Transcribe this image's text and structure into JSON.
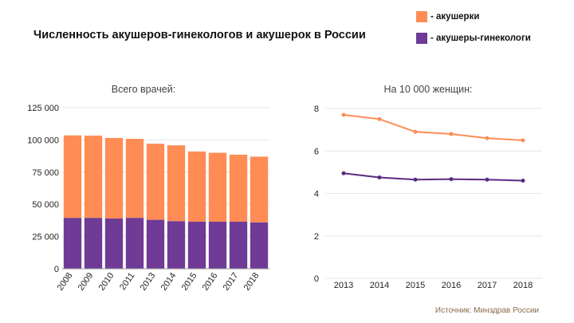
{
  "title": "Численность акушеров-гинекологов и акушерок в России",
  "legend": [
    {
      "label": "- акушерки",
      "color": "#ff8c55"
    },
    {
      "label": "- акушеры-гинекологи",
      "color": "#6f3b96"
    }
  ],
  "source": "Источник: Минздрав России",
  "chart_data": [
    {
      "type": "bar",
      "stacked": true,
      "title": "Всего врачей:",
      "categories": [
        "2008",
        "2009",
        "2010",
        "2011",
        "2013",
        "2014",
        "2015",
        "2016",
        "2017",
        "2018"
      ],
      "series": [
        {
          "name": "- акушеры-гинекологи",
          "color": "#6f3b96",
          "values": [
            39500,
            39500,
            39000,
            39500,
            38000,
            37000,
            36500,
            36500,
            36500,
            36000
          ]
        },
        {
          "name": "- акушерки",
          "color": "#ff8c55",
          "values": [
            64000,
            63800,
            62500,
            61300,
            59000,
            58800,
            54500,
            53500,
            52000,
            51000
          ]
        }
      ],
      "ylim": [
        0,
        125000
      ],
      "yticks": [
        0,
        25000,
        50000,
        75000,
        100000,
        125000
      ],
      "ytick_labels": [
        "0",
        "25 000",
        "50 000",
        "75 000",
        "100 000",
        "125 000"
      ],
      "grid": true
    },
    {
      "type": "line",
      "title": "На 10 000 женщин:",
      "x": [
        "2013",
        "2014",
        "2015",
        "2016",
        "2017",
        "2018"
      ],
      "series": [
        {
          "name": "- акушерки",
          "color": "#ff8c55",
          "values": [
            7.7,
            7.5,
            6.9,
            6.8,
            6.6,
            6.5
          ]
        },
        {
          "name": "- акушеры-гинекологи",
          "color": "#5a2a82",
          "values": [
            4.95,
            4.75,
            4.65,
            4.67,
            4.65,
            4.6
          ]
        }
      ],
      "ylim": [
        0,
        8
      ],
      "yticks": [
        0,
        2,
        4,
        6,
        8
      ],
      "ytick_labels": [
        "0",
        "2",
        "4",
        "6",
        "8"
      ],
      "grid": true
    }
  ]
}
